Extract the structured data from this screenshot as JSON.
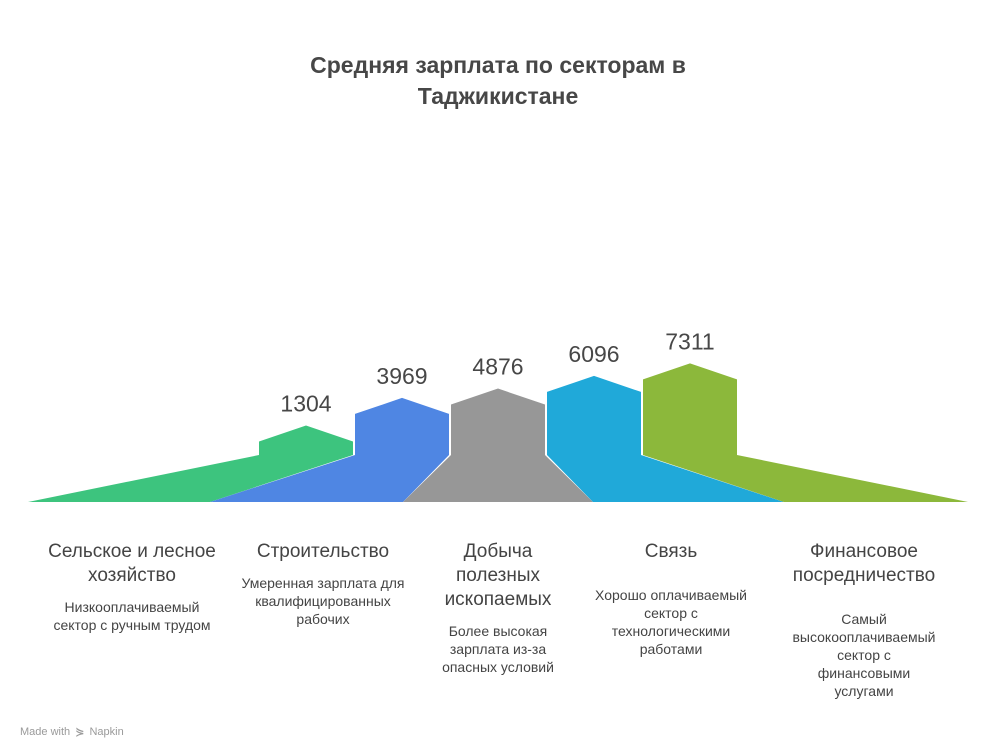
{
  "chart_data": {
    "type": "bar",
    "title_line1": "Средняя зарплата по секторам в",
    "title_line2": "Таджикистане",
    "categories": [
      "Сельское и лесное хозяйство",
      "Строительство",
      "Добыча полезных ископаемых",
      "Связь",
      "Финансовое посредничество"
    ],
    "values": [
      1304,
      3969,
      4876,
      6096,
      7311
    ],
    "descriptions": [
      "Низкооплачиваемый сектор с ручным трудом",
      "Умеренная зарплата для квалифицированных рабочих",
      "Более высокая зарплата из-за опасных условий",
      "Хорошо оплачиваемый сектор с технологическими работами",
      "Самый высокооплачиваемый сектор с финансовыми услугами"
    ],
    "colors": [
      "#3dc47e",
      "#4f86e3",
      "#979797",
      "#20a9d9",
      "#8cb83b"
    ]
  },
  "footer": {
    "made_with": "Made with",
    "brand": "Napkin",
    "icon": "napkin-logo-icon"
  }
}
